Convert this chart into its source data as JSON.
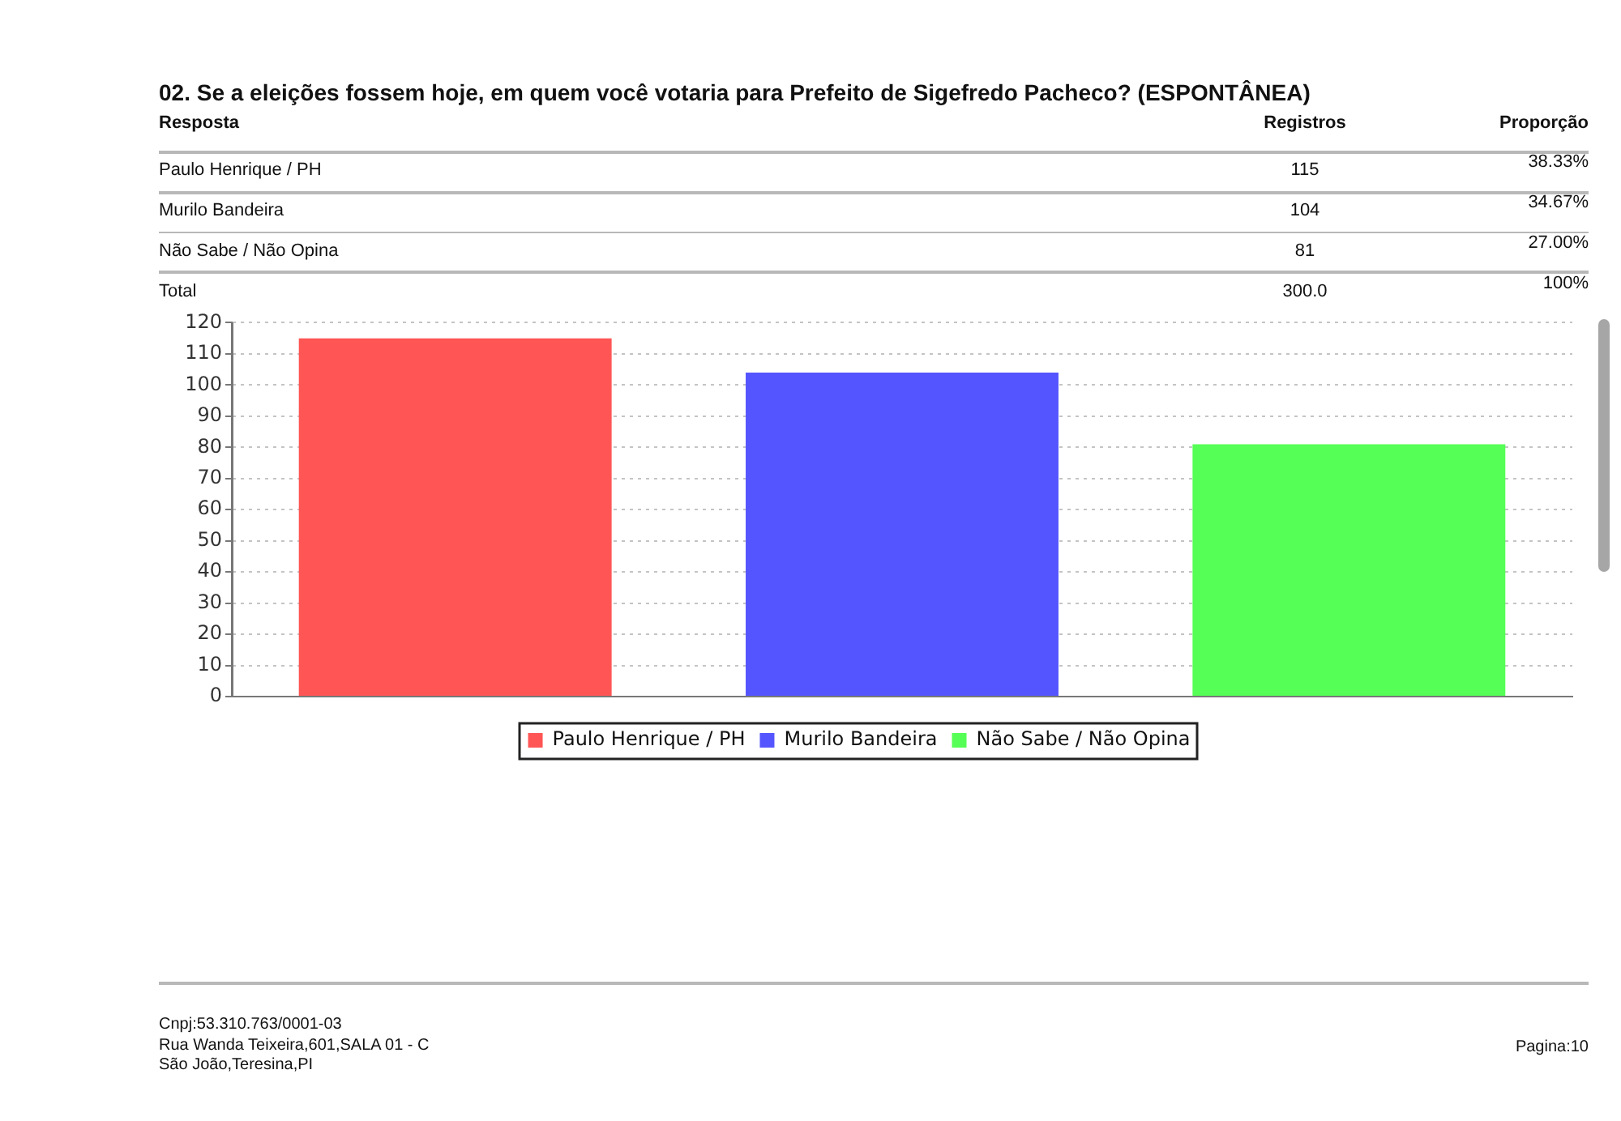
{
  "chart_data": {
    "type": "bar",
    "title": "02. Se a eleições fossem hoje, em quem você votaria para Prefeito de Sigefredo Pacheco? (ESPONTÂNEA)",
    "categories": [
      null
    ],
    "series": [
      {
        "name": "Paulo Henrique / PH",
        "color": "#ff5555",
        "values": [
          115
        ]
      },
      {
        "name": "Murilo Bandeira",
        "color": "#5555ff",
        "values": [
          104
        ]
      },
      {
        "name": "Não Sabe / Não Opina",
        "color": "#55ff55",
        "values": [
          81
        ]
      }
    ],
    "ylim": [
      0,
      120
    ],
    "yticks": [
      0,
      10,
      20,
      30,
      40,
      50,
      60,
      70,
      80,
      90,
      100,
      110,
      120
    ],
    "grid": "y",
    "legend": "bottom",
    "annotations": [
      "Resposta",
      "Registros",
      "Proporção",
      "115",
      "38.33%",
      "104",
      "34.67%",
      "81",
      "27.00%",
      "Total",
      "300.0",
      "100%",
      "Cnpj:53.310.763/0001-03",
      "Rua Wanda Teixeira,601,SALA 01 - C",
      "São João,Teresina,PI",
      "Pagina:10"
    ]
  }
}
